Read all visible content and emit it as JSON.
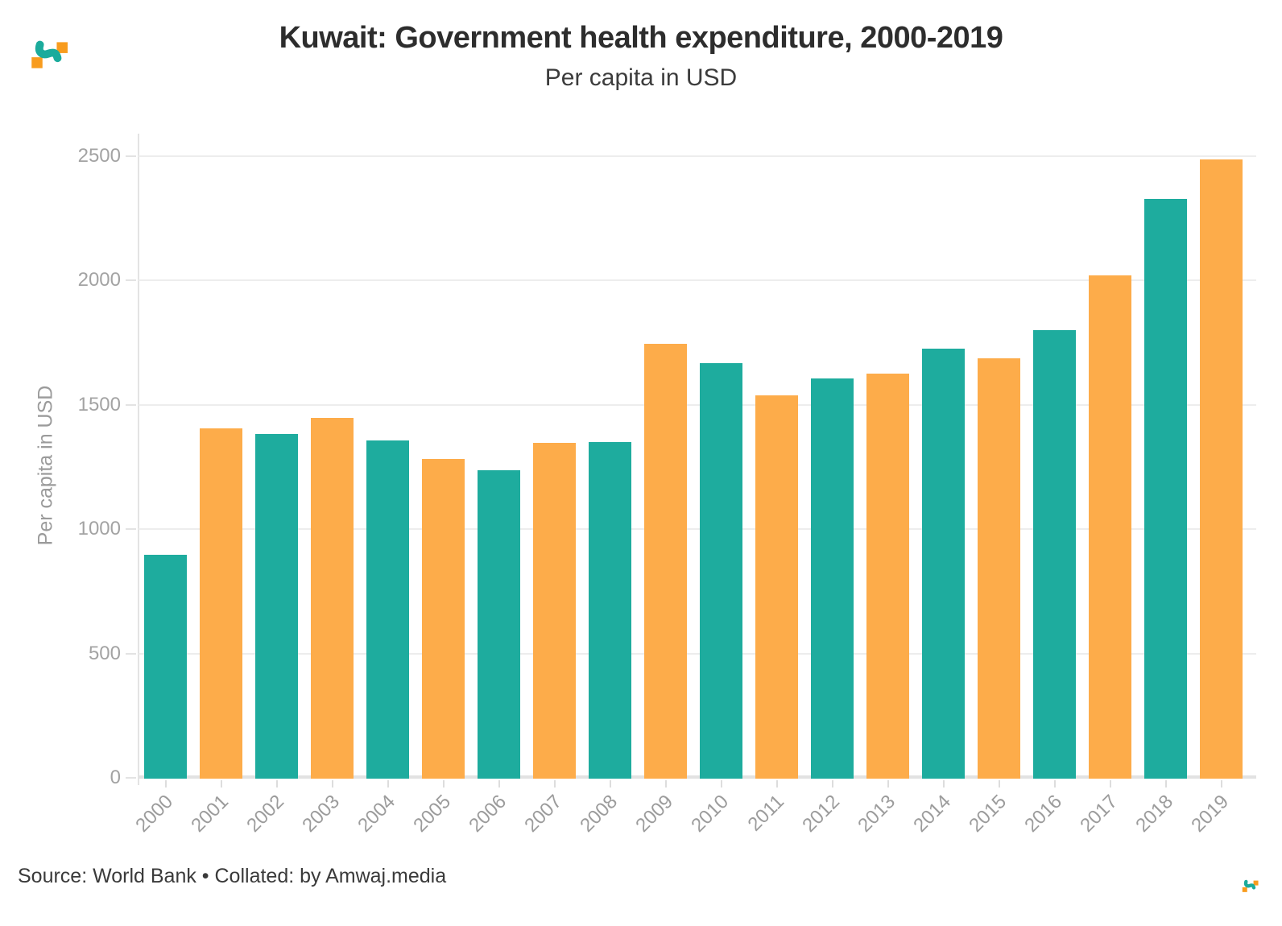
{
  "header": {
    "title": "Kuwait: Government health expenditure, 2000-2019",
    "subtitle": "Per capita in USD"
  },
  "chart_data": {
    "type": "bar",
    "title": "Kuwait: Government health expenditure, 2000-2019",
    "subtitle": "Per capita in USD",
    "xlabel": "",
    "ylabel": "Per capita in USD",
    "ylim": [
      0,
      2500
    ],
    "yticks": [
      0,
      500,
      1000,
      1500,
      2000,
      2500
    ],
    "grid": true,
    "legend": "none",
    "categories": [
      "2000",
      "2001",
      "2002",
      "2003",
      "2004",
      "2005",
      "2006",
      "2007",
      "2008",
      "2009",
      "2010",
      "2011",
      "2012",
      "2013",
      "2014",
      "2015",
      "2016",
      "2017",
      "2018",
      "2019"
    ],
    "values": [
      900,
      1410,
      1385,
      1450,
      1360,
      1285,
      1240,
      1350,
      1355,
      1750,
      1670,
      1540,
      1610,
      1630,
      1730,
      1690,
      1805,
      2025,
      2330,
      2490
    ],
    "bar_color_pattern": [
      "#1EAC9E",
      "#FDAC4A"
    ]
  },
  "footer": {
    "source": "Source: World Bank • Collated: by Amwaj.media"
  },
  "branding": {
    "logo_name": "amwaj-logo",
    "teal": "#1BAB9C",
    "orange": "#F89C1E"
  }
}
